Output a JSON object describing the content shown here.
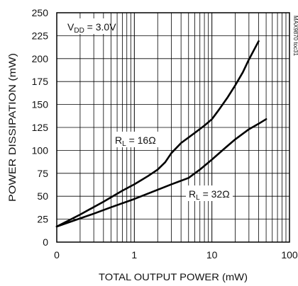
{
  "chart_data": {
    "type": "line",
    "xscale": "log",
    "xlabel": "TOTAL OUTPUT POWER (mW)",
    "ylabel": "POWER DISSIPATION (mW)",
    "xlim": [
      0.1,
      100
    ],
    "ylim": [
      0,
      250
    ],
    "grid": true,
    "x_ticks": [
      {
        "value": 0.1,
        "label": "0"
      },
      {
        "value": 1,
        "label": "1"
      },
      {
        "value": 10,
        "label": "10"
      },
      {
        "value": 100,
        "label": "100"
      }
    ],
    "y_ticks": [
      0,
      25,
      50,
      75,
      100,
      125,
      150,
      175,
      200,
      225,
      250
    ],
    "y_tick_labels": [
      "0",
      "25",
      "50",
      "75",
      "100",
      "125",
      "150",
      "175",
      "200",
      "225",
      "250"
    ],
    "annotations": {
      "vdd_main": "V",
      "vdd_sub": "DD",
      "vdd_value": " = 3.0V",
      "watermark": "MAX9870 toc31"
    },
    "series": [
      {
        "label_main": "R",
        "label_sub": "L",
        "label_value": " = 16Ω",
        "x": [
          0.1,
          0.2,
          0.4,
          0.7,
          1,
          1.5,
          2,
          2.5,
          3,
          4,
          6,
          8,
          10,
          12,
          16,
          20,
          25,
          30,
          40
        ],
        "values": [
          17,
          30,
          44,
          56,
          63,
          72,
          79,
          87,
          97,
          108,
          119,
          127,
          134,
          143,
          158,
          171,
          185,
          199,
          219
        ]
      },
      {
        "label_main": "R",
        "label_sub": "L",
        "label_value": " = 32Ω",
        "x": [
          0.1,
          0.3,
          0.5,
          1,
          2,
          3,
          5,
          7,
          10,
          15,
          20,
          30,
          40,
          50
        ],
        "values": [
          17,
          31,
          38,
          47,
          57,
          63,
          70,
          79,
          90,
          103,
          112,
          123,
          129,
          134
        ]
      }
    ]
  }
}
